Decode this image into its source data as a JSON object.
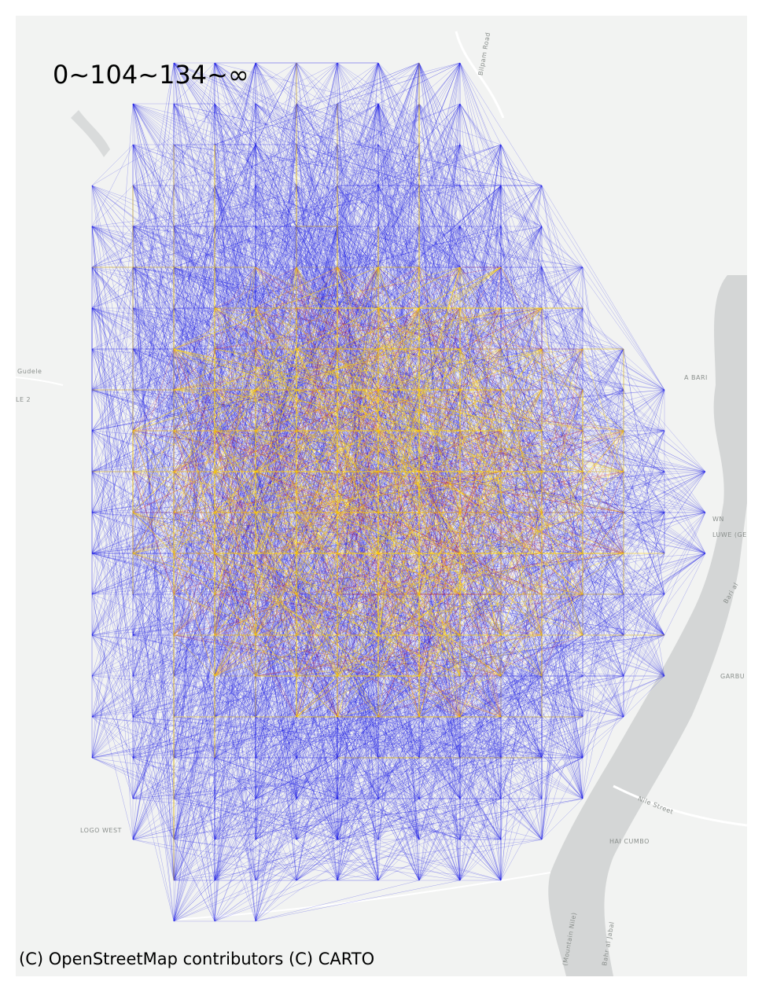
{
  "legend": {
    "label": "0~104~134~∞"
  },
  "attribution": {
    "text": "(C) OpenStreetMap contributors (C) CARTO"
  },
  "basemap": {
    "place_labels": [
      "Gudele",
      "LE 2",
      "LOGO WEST",
      "HAI CUMBO",
      "GARBU",
      "LUWE (GE",
      "WN",
      "A BARI",
      "Nile Street",
      "Bilpam Road",
      "Bahr al Jabal",
      "(Mountain Nile)",
      "Bari al"
    ]
  },
  "colors": {
    "background": "#f2f3f2",
    "water": "#d4d6d6",
    "roads": "#ffffff",
    "flow_low": "#1c1ce6",
    "flow_mid": "#d21e1e",
    "flow_high": "#ffd400"
  },
  "flow_classes": [
    {
      "range": "0~104",
      "color": "#1c1ce6"
    },
    {
      "range": "104~134",
      "color": "#d21e1e"
    },
    {
      "range": "134~∞",
      "color": "#ffd400"
    }
  ]
}
